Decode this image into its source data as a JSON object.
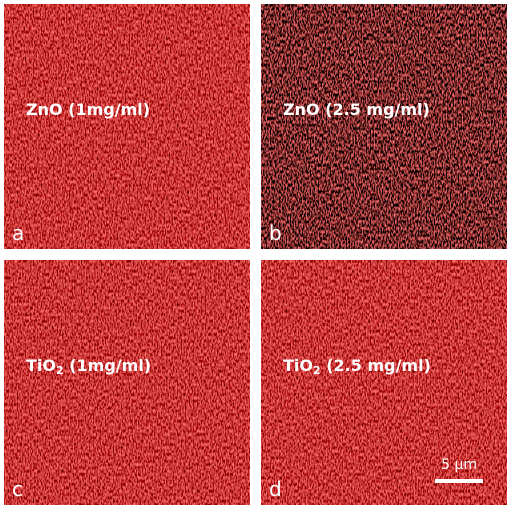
{
  "panels": [
    {
      "letter": "a",
      "label": [
        {
          "text": "ZnO (1mg/ml)"
        }
      ],
      "dark": false
    },
    {
      "letter": "b",
      "label": [
        {
          "text": "ZnO (2.5 mg/ml)"
        }
      ],
      "dark": true
    },
    {
      "letter": "c",
      "label": [
        {
          "text": "TiO"
        },
        {
          "text": "2",
          "sub": true
        },
        {
          "text": " (1mg/ml)"
        }
      ],
      "dark": false
    },
    {
      "letter": "d",
      "label": [
        {
          "text": "TiO"
        },
        {
          "text": "2",
          "sub": true
        },
        {
          "text": " (2.5 mg/ml)"
        }
      ],
      "dark": false,
      "scale_bar": "5 µm"
    }
  ]
}
